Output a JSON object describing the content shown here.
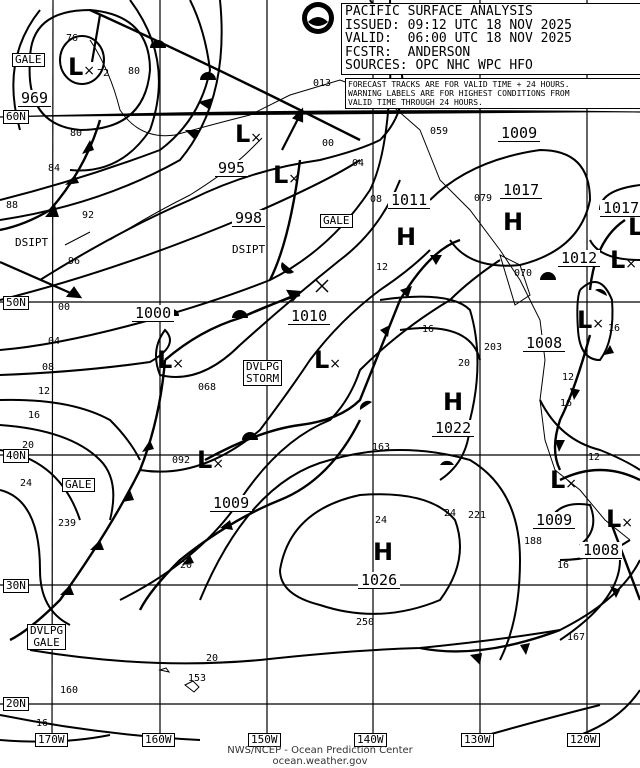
{
  "header": {
    "title": "PACIFIC SURFACE ANALYSIS",
    "issued": "ISSUED: 09:12 UTC 18 NOV 2025",
    "valid": "VALID:  06:00 UTC 18 NOV 2025",
    "forecaster": "FCSTR:  ANDERSON",
    "sources": "SOURCES: OPC NHC WPC HFO"
  },
  "note": {
    "line1": "FORECAST TRACKS ARE FOR VALID TIME + 24 HOURS.",
    "line2": "WARNING LABELS ARE FOR HIGHEST CONDITIONS FROM",
    "line3": "VALID TIME THROUGH 24 HOURS."
  },
  "logo": {
    "text": "NOAA"
  },
  "credit": {
    "line1": "NWS/NCEP - Ocean Prediction Center",
    "line2": "ocean.weather.gov"
  },
  "longitudes": [
    "170W",
    "160W",
    "150W",
    "140W",
    "130W",
    "120W"
  ],
  "latitudes": [
    "60N",
    "50N",
    "40N",
    "30N",
    "20N"
  ],
  "lows": [
    {
      "symbol": "L",
      "pressure": "969"
    },
    {
      "symbol": "L",
      "pressure": "995"
    },
    {
      "symbol": "L",
      "pressure": "998"
    },
    {
      "symbol": "L",
      "pressure": "1000"
    },
    {
      "symbol": "L",
      "pressure": "1009"
    },
    {
      "symbol": "L",
      "pressure": "1010"
    },
    {
      "symbol": "L",
      "pressure": "1012"
    },
    {
      "symbol": "L",
      "pressure": "1008"
    },
    {
      "symbol": "L",
      "pressure": "1009"
    },
    {
      "symbol": "L",
      "pressure": "1008"
    },
    {
      "symbol": "L",
      "pressure": "1017"
    }
  ],
  "highs": [
    {
      "symbol": "H",
      "pressure": "1011"
    },
    {
      "symbol": "H",
      "pressure": "1017"
    },
    {
      "symbol": "H",
      "pressure": "1022"
    },
    {
      "symbol": "H",
      "pressure": "1026"
    }
  ],
  "extra_pressure": [
    "1009"
  ],
  "warnings": [
    "GALE",
    "GALE",
    "GALE",
    "DVLPG\nSTORM",
    "DVLPG\nGALE"
  ],
  "status_labels": [
    "DSIPT",
    "DSIPT"
  ],
  "isobar_labels": [
    "76",
    "72",
    "80",
    "80",
    "84",
    "88",
    "92",
    "96",
    "00",
    "04",
    "08",
    "12",
    "16",
    "20",
    "24",
    "00",
    "04",
    "08",
    "12",
    "16",
    "20",
    "24",
    "20",
    "16",
    "12",
    "20",
    "24",
    "16",
    "12",
    "16",
    "16",
    "013",
    "059",
    "079",
    "070",
    "068",
    "092",
    "163",
    "203",
    "221",
    "188",
    "239",
    "250",
    "167",
    "160",
    "153"
  ]
}
